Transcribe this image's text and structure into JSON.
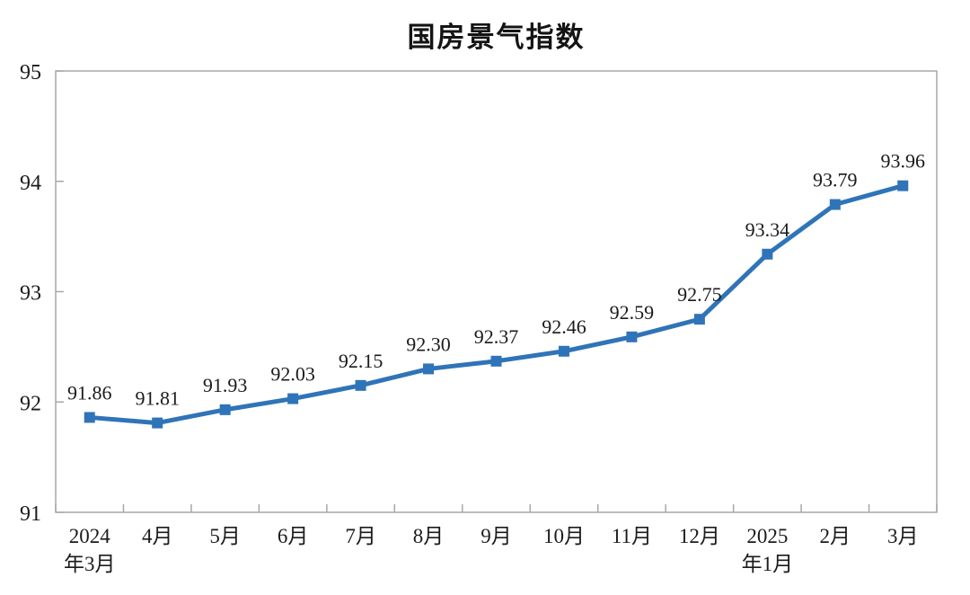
{
  "colors": {
    "line": "#2F74B8",
    "marker": "#2F74B8",
    "axis": "#A8A8A8",
    "text": "#1B1B1B",
    "title": "#141414",
    "background": "#FFFFFF"
  },
  "chart_data": {
    "type": "line",
    "title": "国房景气指数",
    "xlabel": "",
    "ylabel": "",
    "categories": [
      "2024年3月",
      "4月",
      "5月",
      "6月",
      "7月",
      "8月",
      "9月",
      "10月",
      "11月",
      "12月",
      "2025年1月",
      "2月",
      "3月"
    ],
    "category_display_lines": [
      [
        "2024",
        "年3月"
      ],
      [
        "4月"
      ],
      [
        "5月"
      ],
      [
        "6月"
      ],
      [
        "7月"
      ],
      [
        "8月"
      ],
      [
        "9月"
      ],
      [
        "10月"
      ],
      [
        "11月"
      ],
      [
        "12月"
      ],
      [
        "2025",
        "年1月"
      ],
      [
        "2月"
      ],
      [
        "3月"
      ]
    ],
    "series": [
      {
        "name": "国房景气指数",
        "values": [
          91.86,
          91.81,
          91.93,
          92.03,
          92.15,
          92.3,
          92.37,
          92.46,
          92.59,
          92.75,
          93.34,
          93.79,
          93.96
        ],
        "data_labels": [
          "91.86",
          "91.81",
          "91.93",
          "92.03",
          "92.15",
          "92.30",
          "92.37",
          "92.46",
          "92.59",
          "92.75",
          "93.34",
          "93.79",
          "93.96"
        ]
      }
    ],
    "ylim": [
      91,
      95
    ],
    "yticks": [
      91,
      92,
      93,
      94,
      95
    ],
    "ytick_labels": [
      "91",
      "92",
      "93",
      "94",
      "95"
    ],
    "grid": false,
    "legend_position": "none",
    "marker": "square",
    "data_labels_shown": true
  }
}
